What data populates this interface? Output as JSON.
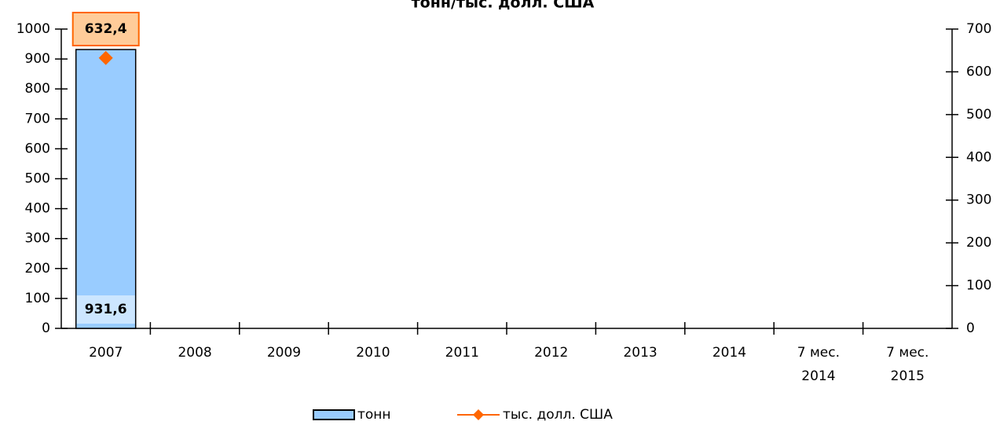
{
  "chart_data": {
    "type": "bar-line",
    "title": "тонн/тыс. долл. США",
    "categories": [
      "2007",
      "2008",
      "2009",
      "2010",
      "2011",
      "2012",
      "2013",
      "2014",
      "7 мес. 2014",
      "7 мес. 2015"
    ],
    "series": [
      {
        "name": "тонн",
        "type": "bar",
        "color": "#99ccff",
        "axis": "y",
        "values": [
          931.6,
          null,
          null,
          null,
          null,
          null,
          null,
          null,
          null,
          null
        ],
        "value_labels": [
          "931,6",
          null,
          null,
          null,
          null,
          null,
          null,
          null,
          null,
          null
        ]
      },
      {
        "name": "тыс. долл. США",
        "type": "line",
        "color": "#ff6600",
        "axis": "y2",
        "values": [
          632.4,
          null,
          null,
          null,
          null,
          null,
          null,
          null,
          null,
          null
        ],
        "value_labels": [
          "632,4",
          null,
          null,
          null,
          null,
          null,
          null,
          null,
          null,
          null
        ]
      }
    ],
    "ylim": [
      0,
      1000
    ],
    "yticks": [
      0,
      100,
      200,
      300,
      400,
      500,
      600,
      700,
      800,
      900,
      1000
    ],
    "y2lim": [
      0,
      700
    ],
    "y2ticks": [
      0,
      100,
      200,
      300,
      400,
      500,
      600,
      700
    ],
    "legend": "bottom"
  }
}
